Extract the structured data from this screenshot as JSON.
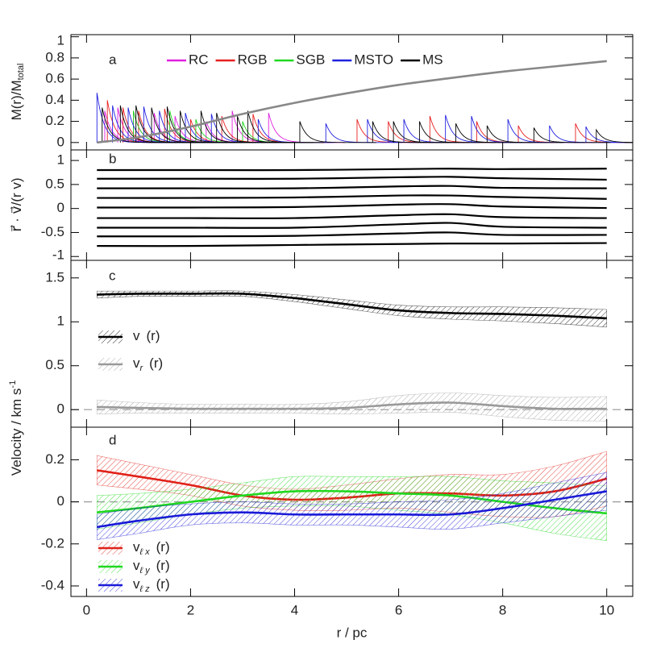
{
  "chart_data": [
    {
      "type": "line",
      "panel_label": "a",
      "ylabel": "M(r)/M",
      "ylabel_sub": "total",
      "xlim": [
        -0.3,
        10.5
      ],
      "xticks": [
        0,
        2,
        4,
        6,
        8,
        10
      ],
      "ylim": [
        -0.07,
        1.02
      ],
      "yticks": [
        0,
        0.2,
        0.4,
        0.6,
        0.8,
        1
      ],
      "series": [
        {
          "name": "RC",
          "kind": "spike",
          "color": "#e020e0",
          "x": [
            0.35,
            0.6,
            0.9,
            1.3,
            1.7,
            2.3,
            2.8,
            3.5
          ],
          "values": [
            0.3,
            0.33,
            0.3,
            0.28,
            0.25,
            0.2,
            0.3,
            0.28
          ]
        },
        {
          "name": "RGB",
          "kind": "spike",
          "color": "#e82020",
          "x": [
            0.4,
            0.7,
            1.0,
            1.5,
            2.0,
            2.6,
            3.2,
            5.2,
            5.8,
            6.6,
            7.5,
            8.3,
            9.4
          ],
          "values": [
            0.4,
            0.33,
            0.3,
            0.32,
            0.22,
            0.25,
            0.27,
            0.22,
            0.2,
            0.25,
            0.2,
            0.16,
            0.18
          ]
        },
        {
          "name": "SGB",
          "kind": "spike",
          "color": "#20d820",
          "x": [
            0.9,
            1.6,
            2.1,
            3.0
          ],
          "values": [
            0.3,
            0.3,
            0.22,
            0.2
          ]
        },
        {
          "name": "MSTO",
          "kind": "spike",
          "color": "#2020e0",
          "x": [
            0.2,
            0.5,
            0.8,
            1.1,
            1.4,
            1.9,
            2.4,
            3.3,
            4.6,
            5.4,
            6.1,
            6.9,
            7.4,
            8.1,
            8.9,
            9.6
          ],
          "values": [
            0.47,
            0.35,
            0.33,
            0.34,
            0.3,
            0.28,
            0.27,
            0.22,
            0.18,
            0.22,
            0.22,
            0.26,
            0.25,
            0.22,
            0.16,
            0.15
          ]
        },
        {
          "name": "MS",
          "kind": "spike",
          "color": "#000000",
          "x": [
            0.3,
            0.65,
            0.95,
            1.25,
            1.55,
            1.8,
            2.2,
            2.5,
            2.9,
            3.1,
            4.1,
            5.5,
            5.9,
            6.4,
            7.1,
            7.7,
            8.6,
            9.8
          ],
          "values": [
            0.33,
            0.35,
            0.35,
            0.33,
            0.34,
            0.3,
            0.3,
            0.28,
            0.25,
            0.3,
            0.2,
            0.2,
            0.2,
            0.2,
            0.18,
            0.16,
            0.14,
            0.12
          ]
        },
        {
          "color": "#888888",
          "x": [
            0.2,
            1,
            2,
            3,
            4,
            5,
            6,
            7,
            8,
            9,
            10
          ],
          "values": [
            0,
            0.05,
            0.15,
            0.27,
            0.375,
            0.465,
            0.545,
            0.61,
            0.67,
            0.72,
            0.77
          ]
        }
      ]
    },
    {
      "type": "line",
      "panel_label": "b",
      "ylabel": "r⃗ · v⃗/(r v)",
      "xlim": [
        -0.3,
        10.5
      ],
      "xticks": [
        0,
        2,
        4,
        6,
        8,
        10
      ],
      "ylim": [
        -1.08,
        1.22
      ],
      "yticks": [
        -1,
        -0.5,
        0,
        0.5,
        1
      ],
      "x": [
        0.2,
        2,
        4,
        6,
        7,
        8,
        10
      ],
      "series": [
        {
          "color": "#000000",
          "values": [
            0.8,
            0.8,
            0.8,
            0.82,
            0.83,
            0.82,
            0.83
          ]
        },
        {
          "color": "#000000",
          "values": [
            0.62,
            0.62,
            0.62,
            0.65,
            0.66,
            0.63,
            0.6
          ]
        },
        {
          "color": "#000000",
          "values": [
            0.42,
            0.42,
            0.42,
            0.46,
            0.47,
            0.43,
            0.42
          ]
        },
        {
          "color": "#000000",
          "values": [
            0.22,
            0.22,
            0.23,
            0.27,
            0.27,
            0.24,
            0.2
          ]
        },
        {
          "color": "#000000",
          "values": [
            0.02,
            0.02,
            0.03,
            0.08,
            0.09,
            0.04,
            0.01
          ]
        },
        {
          "color": "#000000",
          "values": [
            -0.2,
            -0.2,
            -0.2,
            -0.14,
            -0.12,
            -0.18,
            -0.2
          ]
        },
        {
          "color": "#000000",
          "values": [
            -0.4,
            -0.4,
            -0.4,
            -0.33,
            -0.3,
            -0.38,
            -0.4
          ]
        },
        {
          "color": "#000000",
          "values": [
            -0.58,
            -0.58,
            -0.57,
            -0.52,
            -0.5,
            -0.55,
            -0.55
          ]
        },
        {
          "color": "#000000",
          "values": [
            -0.78,
            -0.78,
            -0.76,
            -0.74,
            -0.73,
            -0.73,
            -0.72
          ]
        }
      ]
    },
    {
      "type": "line",
      "panel_label": "c",
      "ylabel": "Velocity / km s",
      "ylabel_sup": "-1",
      "xlim": [
        -0.3,
        10.5
      ],
      "xticks": [
        0,
        2,
        4,
        6,
        8,
        10
      ],
      "ylim": [
        -0.2,
        1.7
      ],
      "yticks": [
        0,
        0.5,
        1,
        1.5
      ],
      "zero_line": true,
      "x": [
        0.2,
        1,
        2,
        3,
        4,
        5,
        6,
        7,
        8,
        9,
        10
      ],
      "series": [
        {
          "name": "v",
          "suffix": "(r)",
          "color": "#000000",
          "values": [
            1.31,
            1.32,
            1.32,
            1.32,
            1.27,
            1.2,
            1.13,
            1.1,
            1.09,
            1.07,
            1.04
          ],
          "errors": [
            0.04,
            0.03,
            0.03,
            0.03,
            0.04,
            0.05,
            0.06,
            0.07,
            0.08,
            0.09,
            0.1
          ]
        },
        {
          "name": "v",
          "sub": "r",
          "suffix": "(r)",
          "color": "#999999",
          "values": [
            0.03,
            0.02,
            0.01,
            0.01,
            0.01,
            0.02,
            0.06,
            0.08,
            0.04,
            0.01,
            0.01
          ],
          "errors": [
            0.08,
            0.06,
            0.05,
            0.05,
            0.05,
            0.07,
            0.1,
            0.11,
            0.12,
            0.13,
            0.14
          ]
        }
      ]
    },
    {
      "type": "line",
      "panel_label": "d",
      "xlabel": "r / pc",
      "xlim": [
        -0.3,
        10.5
      ],
      "xticks": [
        0,
        2,
        4,
        6,
        8,
        10
      ],
      "ylim": [
        -0.45,
        0.355
      ],
      "yticks": [
        -0.4,
        -0.2,
        0,
        0.2
      ],
      "zero_line": true,
      "x": [
        0.2,
        1,
        2,
        3,
        4,
        5,
        6,
        7,
        8,
        9,
        10
      ],
      "series": [
        {
          "name": "v",
          "sub": "ℓ x",
          "suffix": "(r)",
          "color": "#e02018",
          "values": [
            0.15,
            0.12,
            0.08,
            0.03,
            0.01,
            0.02,
            0.04,
            0.04,
            0.03,
            0.05,
            0.11
          ],
          "errors": [
            0.07,
            0.06,
            0.05,
            0.05,
            0.05,
            0.06,
            0.07,
            0.09,
            0.1,
            0.12,
            0.13
          ]
        },
        {
          "name": "v",
          "sub": "ℓ y",
          "suffix": "(r)",
          "color": "#20d820",
          "values": [
            -0.05,
            -0.03,
            0.0,
            0.03,
            0.05,
            0.05,
            0.04,
            0.03,
            0.0,
            -0.03,
            -0.055
          ],
          "errors": [
            0.08,
            0.07,
            0.06,
            0.06,
            0.07,
            0.07,
            0.08,
            0.09,
            0.1,
            0.12,
            0.13
          ]
        },
        {
          "name": "v",
          "sub": "ℓ z",
          "suffix": "(r)",
          "color": "#1a1ad8",
          "values": [
            -0.12,
            -0.09,
            -0.06,
            -0.05,
            -0.06,
            -0.06,
            -0.06,
            -0.06,
            -0.03,
            0.01,
            0.05
          ],
          "errors": [
            0.06,
            0.06,
            0.05,
            0.05,
            0.05,
            0.05,
            0.06,
            0.07,
            0.07,
            0.08,
            0.09
          ]
        }
      ]
    }
  ]
}
